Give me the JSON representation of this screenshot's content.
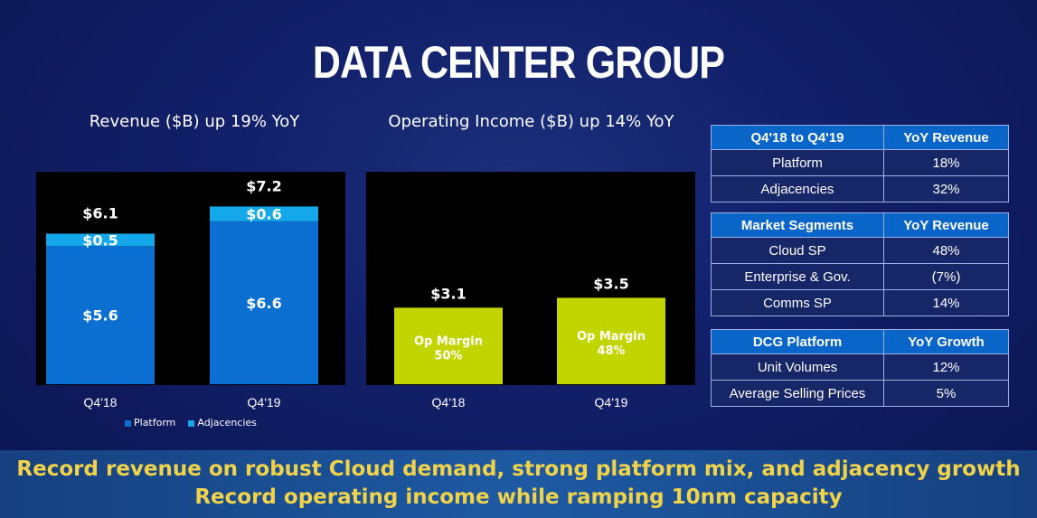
{
  "title": "DATA CENTER GROUP",
  "chart_data": [
    {
      "type": "bar",
      "stacked": true,
      "title": "Revenue ($B) up 19% YoY",
      "categories": [
        "Q4'18",
        "Q4'19"
      ],
      "series": [
        {
          "name": "Platform",
          "values": [
            5.6,
            6.6
          ],
          "labels": [
            "$5.6",
            "$6.6"
          ],
          "color": "#0a6fd1"
        },
        {
          "name": "Adjacencies",
          "values": [
            0.5,
            0.6
          ],
          "labels": [
            "$0.5",
            "$0.6"
          ],
          "color": "#14a7ea"
        }
      ],
      "totals": [
        "$6.1",
        "$7.2"
      ],
      "ylim": [
        0,
        8.5
      ],
      "legend": "bottom"
    },
    {
      "type": "bar",
      "title": "Operating Income ($B) up 14% YoY",
      "categories": [
        "Q4'18",
        "Q4'19"
      ],
      "values": [
        3.1,
        3.5
      ],
      "value_labels": [
        "$3.1",
        "$3.5"
      ],
      "bar_text": [
        [
          "Op Margin",
          "50%"
        ],
        [
          "Op Margin",
          "48%"
        ]
      ],
      "color": "#c2d501",
      "ylim": [
        0,
        8.5
      ]
    }
  ],
  "tables": {
    "rev": {
      "headers": [
        "Q4'18 to Q4'19",
        "YoY Revenue"
      ],
      "rows": [
        [
          "Platform",
          "18%"
        ],
        [
          "Adjacencies",
          "32%"
        ]
      ]
    },
    "seg": {
      "headers": [
        "Market Segments",
        "YoY Revenue"
      ],
      "rows": [
        [
          "Cloud SP",
          "48%"
        ],
        [
          "Enterprise & Gov.",
          "(7%)"
        ],
        [
          "Comms SP",
          "14%"
        ]
      ]
    },
    "plat": {
      "headers": [
        "DCG Platform",
        "YoY Growth"
      ],
      "rows": [
        [
          "Unit Volumes",
          "12%"
        ],
        [
          "Average Selling Prices",
          "5%"
        ]
      ]
    }
  },
  "banner": {
    "line1": "Record revenue on robust Cloud demand, strong platform mix, and adjacency growth",
    "line2": "Record operating income while ramping 10nm capacity"
  }
}
